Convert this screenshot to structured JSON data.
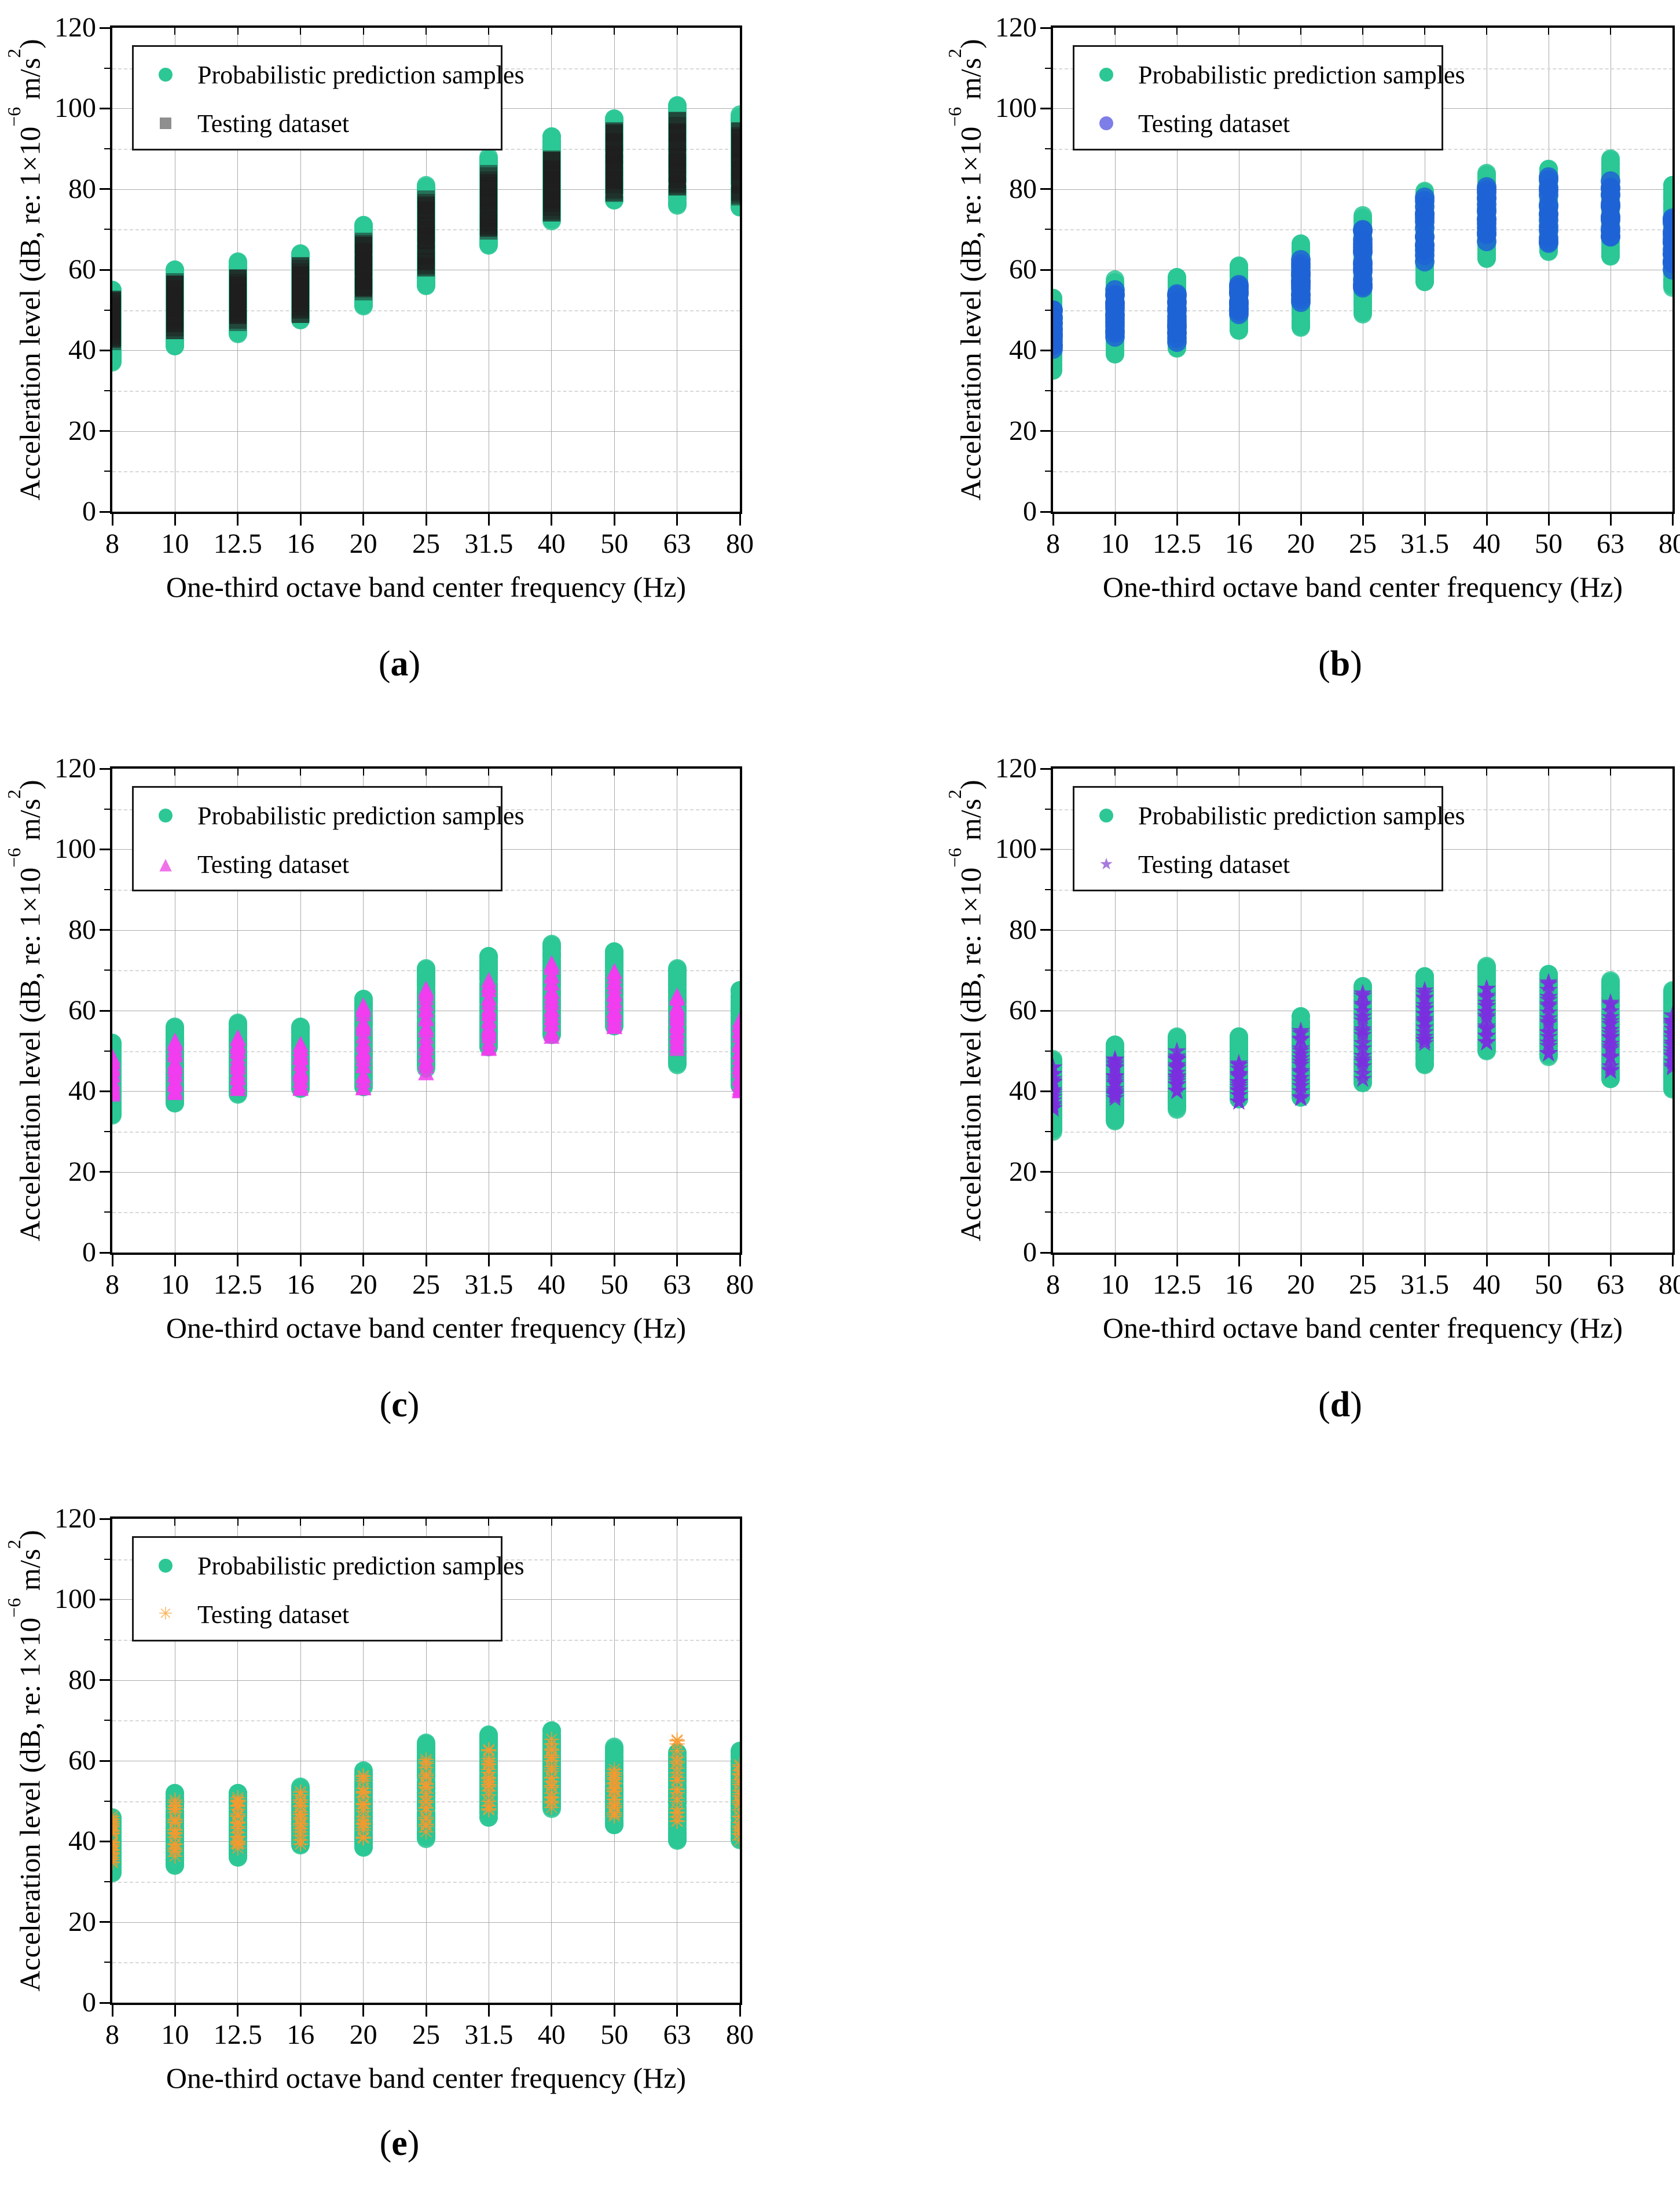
{
  "shared": {
    "xlabel": "One-third octave band center frequency (Hz)",
    "ylabel_pre": "Acceleration level (dB, re: 1×10",
    "ylabel_exp": "−6",
    "ylabel_mid": " m/s",
    "ylabel_exp2": "2",
    "ylabel_post": ")",
    "legend": {
      "pred": "Probabilistic prediction samples",
      "test": "Testing dataset"
    },
    "categories": [
      "8",
      "10",
      "12.5",
      "16",
      "20",
      "25",
      "31.5",
      "40",
      "50",
      "63",
      "80"
    ],
    "yticks": [
      "0",
      "20",
      "40",
      "60",
      "80",
      "100",
      "120"
    ],
    "ylim": [
      0,
      120
    ],
    "pred_color": "#2cc795",
    "grid": {
      "major_color": "#ababab",
      "minor_dashed_color": "#d8d8d8",
      "vertical_color": "#a9a9a9"
    }
  },
  "chart_data": [
    {
      "id": "a",
      "type": "scatter",
      "caption_letter": "a",
      "caption_open": "(",
      "caption_close": ")",
      "test_marker": "square-icon",
      "test_color": "#1e1e1e",
      "test_legend_color": "#8f8f8f",
      "series": [
        {
          "role": "pred",
          "name": "Probabilistic prediction samples",
          "ranges": [
            [
              37,
              55
            ],
            [
              41,
              60
            ],
            [
              44,
              62
            ],
            [
              47.5,
              64
            ],
            [
              51,
              71
            ],
            [
              56,
              81
            ],
            [
              66,
              88
            ],
            [
              72,
              93
            ],
            [
              77,
              97.5
            ],
            [
              76,
              101
            ],
            [
              75,
              98.5
            ]
          ]
        },
        {
          "role": "test",
          "name": "Testing dataset",
          "ranges": [
            [
              42,
              53
            ],
            [
              45,
              57
            ],
            [
              47,
              58
            ],
            [
              49,
              61
            ],
            [
              54,
              67
            ],
            [
              60,
              78
            ],
            [
              69,
              84
            ],
            [
              74,
              88
            ],
            [
              79,
              95
            ],
            [
              80,
              97
            ],
            [
              78,
              95
            ]
          ]
        }
      ]
    },
    {
      "id": "b",
      "type": "scatter",
      "caption_letter": "b",
      "caption_open": "(",
      "caption_close": ")",
      "test_marker": "circle-icon",
      "test_color": "#1f63d6",
      "test_legend_color": "#7e7ee8",
      "series": [
        {
          "role": "pred",
          "name": "Probabilistic prediction samples",
          "ranges": [
            [
              35,
              53
            ],
            [
              39,
              57.5
            ],
            [
              40.5,
              58.5
            ],
            [
              45,
              61
            ],
            [
              45.5,
              66.5
            ],
            [
              49,
              73.5
            ],
            [
              57,
              79.5
            ],
            [
              62.5,
              84
            ],
            [
              64.5,
              85
            ],
            [
              63,
              87.5
            ],
            [
              55.5,
              81
            ]
          ]
        },
        {
          "role": "test",
          "name": "Testing dataset",
          "ranges": [
            [
              40,
              50
            ],
            [
              43,
              55
            ],
            [
              42,
              54
            ],
            [
              49,
              56.5
            ],
            [
              52,
              62.5
            ],
            [
              55,
              70
            ],
            [
              62,
              78
            ],
            [
              67,
              81
            ],
            [
              66,
              83
            ],
            [
              68,
              82
            ],
            [
              60,
              73
            ]
          ]
        }
      ]
    },
    {
      "id": "c",
      "type": "scatter",
      "caption_letter": "c",
      "caption_open": "(",
      "caption_close": ")",
      "test_marker": "triangle-icon",
      "test_color": "#f23cf0",
      "test_legend_color": "#ef72ea",
      "series": [
        {
          "role": "pred",
          "name": "Probabilistic prediction samples",
          "ranges": [
            [
              34,
              52
            ],
            [
              37,
              56
            ],
            [
              39,
              57
            ],
            [
              40.5,
              56
            ],
            [
              41,
              63
            ],
            [
              45.5,
              70.5
            ],
            [
              51,
              73.5
            ],
            [
              54,
              76.5
            ],
            [
              56,
              75
            ],
            [
              46.5,
              70.5
            ],
            [
              41,
              65
            ]
          ]
        },
        {
          "role": "test",
          "name": "Testing dataset",
          "ranges": [
            [
              39,
              49
            ],
            [
              40,
              53
            ],
            [
              41,
              54
            ],
            [
              41,
              52
            ],
            [
              41,
              62
            ],
            [
              45,
              66
            ],
            [
              51,
              68
            ],
            [
              54,
              72
            ],
            [
              56,
              70
            ],
            [
              51,
              64
            ],
            [
              40,
              58
            ]
          ]
        }
      ]
    },
    {
      "id": "d",
      "type": "scatter",
      "caption_letter": "d",
      "caption_open": "(",
      "caption_close": ")",
      "test_marker": "star-icon",
      "test_color": "#7b2fe0",
      "test_legend_color": "#a87ae0",
      "series": [
        {
          "role": "pred",
          "name": "Probabilistic prediction samples",
          "ranges": [
            [
              30,
              48
            ],
            [
              32.5,
              51.5
            ],
            [
              35.5,
              53.5
            ],
            [
              38,
              53.5
            ],
            [
              38.5,
              58.5
            ],
            [
              42,
              66
            ],
            [
              46.5,
              68.5
            ],
            [
              50,
              71
            ],
            [
              48.5,
              69
            ],
            [
              43,
              67.5
            ],
            [
              40.5,
              65
            ]
          ]
        },
        {
          "role": "test",
          "name": "Testing dataset",
          "ranges": [
            [
              35,
              46
            ],
            [
              38,
              48
            ],
            [
              40,
              50
            ],
            [
              37.5,
              47
            ],
            [
              38,
              55
            ],
            [
              43,
              65
            ],
            [
              52,
              65
            ],
            [
              52,
              65.5
            ],
            [
              49,
              67
            ],
            [
              45,
              62
            ],
            [
              46,
              59
            ]
          ]
        }
      ]
    },
    {
      "id": "e",
      "type": "scatter",
      "caption_letter": "e",
      "caption_open": "(",
      "caption_close": ")",
      "test_marker": "asterisk-icon",
      "test_color": "#f79a2e",
      "test_legend_color": "#fdb45c",
      "series": [
        {
          "role": "pred",
          "name": "Probabilistic prediction samples",
          "ranges": [
            [
              32,
              46
            ],
            [
              34,
              52
            ],
            [
              36,
              52
            ],
            [
              39,
              53.5
            ],
            [
              38.5,
              57.5
            ],
            [
              40.5,
              64.5
            ],
            [
              46,
              66.5
            ],
            [
              48,
              67.5
            ],
            [
              44,
              63.5
            ],
            [
              40,
              62
            ],
            [
              40,
              62.5
            ]
          ]
        },
        {
          "role": "test",
          "name": "Testing dataset",
          "ranges": [
            [
              34,
              46
            ],
            [
              36,
              50
            ],
            [
              38,
              51
            ],
            [
              39,
              52
            ],
            [
              40,
              56
            ],
            [
              42,
              60
            ],
            [
              47,
              63
            ],
            [
              48,
              65
            ],
            [
              46,
              58
            ],
            [
              44,
              65
            ],
            [
              40,
              59
            ]
          ]
        }
      ]
    }
  ]
}
